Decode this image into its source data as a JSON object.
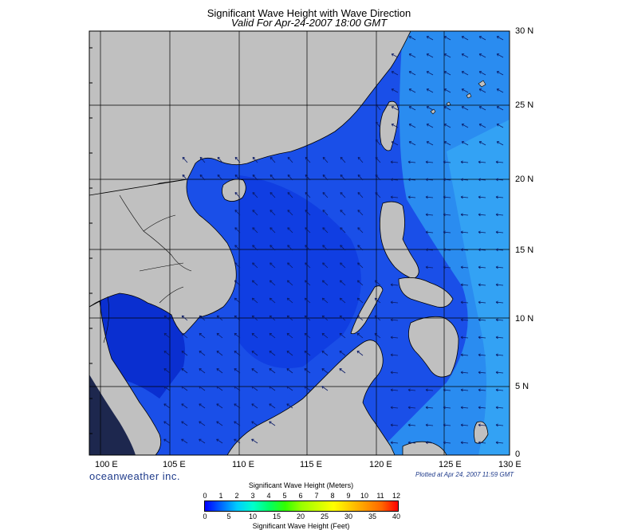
{
  "title": "Significant Wave Height with Wave Direction",
  "subtitle": "Valid For Apr-24-2007 18:00 GMT",
  "lon_labels": [
    "100 E",
    "105 E",
    "110 E",
    "115 E",
    "120 E",
    "125 E",
    "130 E"
  ],
  "lat_labels": [
    "30 N",
    "25 N",
    "20 N",
    "15 N",
    "10 N",
    "5 N",
    "0"
  ],
  "brand": "oceanweather inc.",
  "plotted": "Plotted at Apr 24, 2007 11:59 GMT",
  "legend": {
    "meters_title": "Significant Wave Height (Meters)",
    "feet_title": "Significant Wave Height (Feet)",
    "meters_ticks": [
      "0",
      "1",
      "2",
      "3",
      "4",
      "5",
      "6",
      "7",
      "8",
      "9",
      "10",
      "11",
      "12"
    ],
    "feet_ticks": [
      "0",
      "5",
      "10",
      "15",
      "20",
      "25",
      "30",
      "35",
      "40"
    ]
  },
  "colors": {
    "land": "#c0c0c0",
    "sea_low": "#0a2bd6",
    "sea_mid": "#1d5ef0",
    "sea_high": "#2f9cf2",
    "arrow": "#0a1a66",
    "grid": "#000000"
  },
  "colorbar_stops": [
    "#0000ff",
    "#0066ff",
    "#00ccff",
    "#00ffcc",
    "#00ff66",
    "#33ff00",
    "#99ff00",
    "#ccff00",
    "#ffff00",
    "#ffcc00",
    "#ff9900",
    "#ff6600",
    "#ff0000"
  ]
}
